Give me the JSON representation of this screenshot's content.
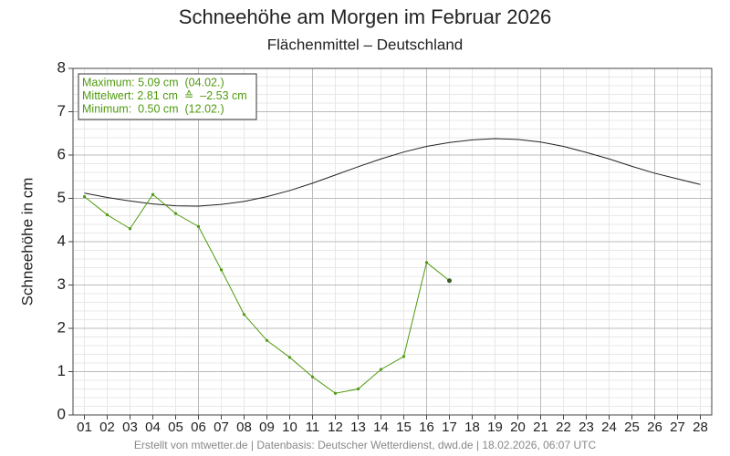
{
  "chart_data": {
    "type": "line",
    "title": "Schneehöhe am Morgen im Februar 2026",
    "subtitle": "Flächenmittel – Deutschland",
    "y_label": "Schneehöhe in cm",
    "annotations": [
      "Maximum: 5.09 cm  (04.02.)",
      "Mittelwert: 2.81 cm  ≙  –2.53 cm",
      "Minimum:  0.50 cm  (12.02.)"
    ],
    "footer": "Erstellt von mtwetter.de | Datenbasis: Deutscher Wetterdienst, dwd.de | 18.02.2026, 06:07 UTC",
    "categories": [
      "01",
      "02",
      "03",
      "04",
      "05",
      "06",
      "07",
      "08",
      "09",
      "10",
      "11",
      "12",
      "13",
      "14",
      "15",
      "16",
      "17",
      "18",
      "19",
      "20",
      "21",
      "22",
      "23",
      "24",
      "25",
      "26",
      "27",
      "28"
    ],
    "series": [
      {
        "color": "#222222",
        "values": [
          5.12,
          5.02,
          4.94,
          4.87,
          4.83,
          4.82,
          4.86,
          4.93,
          5.04,
          5.18,
          5.35,
          5.54,
          5.73,
          5.91,
          6.07,
          6.2,
          6.29,
          6.35,
          6.38,
          6.36,
          6.3,
          6.2,
          6.06,
          5.91,
          5.74,
          5.58,
          5.45,
          5.32
        ]
      },
      {
        "color": "#4f9a0e",
        "values": [
          5.04,
          4.62,
          4.3,
          5.09,
          4.65,
          4.35,
          3.35,
          2.32,
          1.72,
          1.33,
          0.88,
          0.5,
          0.6,
          1.05,
          1.35,
          3.52,
          3.1,
          null,
          null,
          null,
          null,
          null,
          null,
          null,
          null,
          null,
          null,
          null
        ]
      }
    ],
    "ylim": [
      0,
      8
    ],
    "yticks": [
      0,
      1,
      2,
      3,
      4,
      5,
      6,
      7,
      8
    ],
    "grid": true
  }
}
